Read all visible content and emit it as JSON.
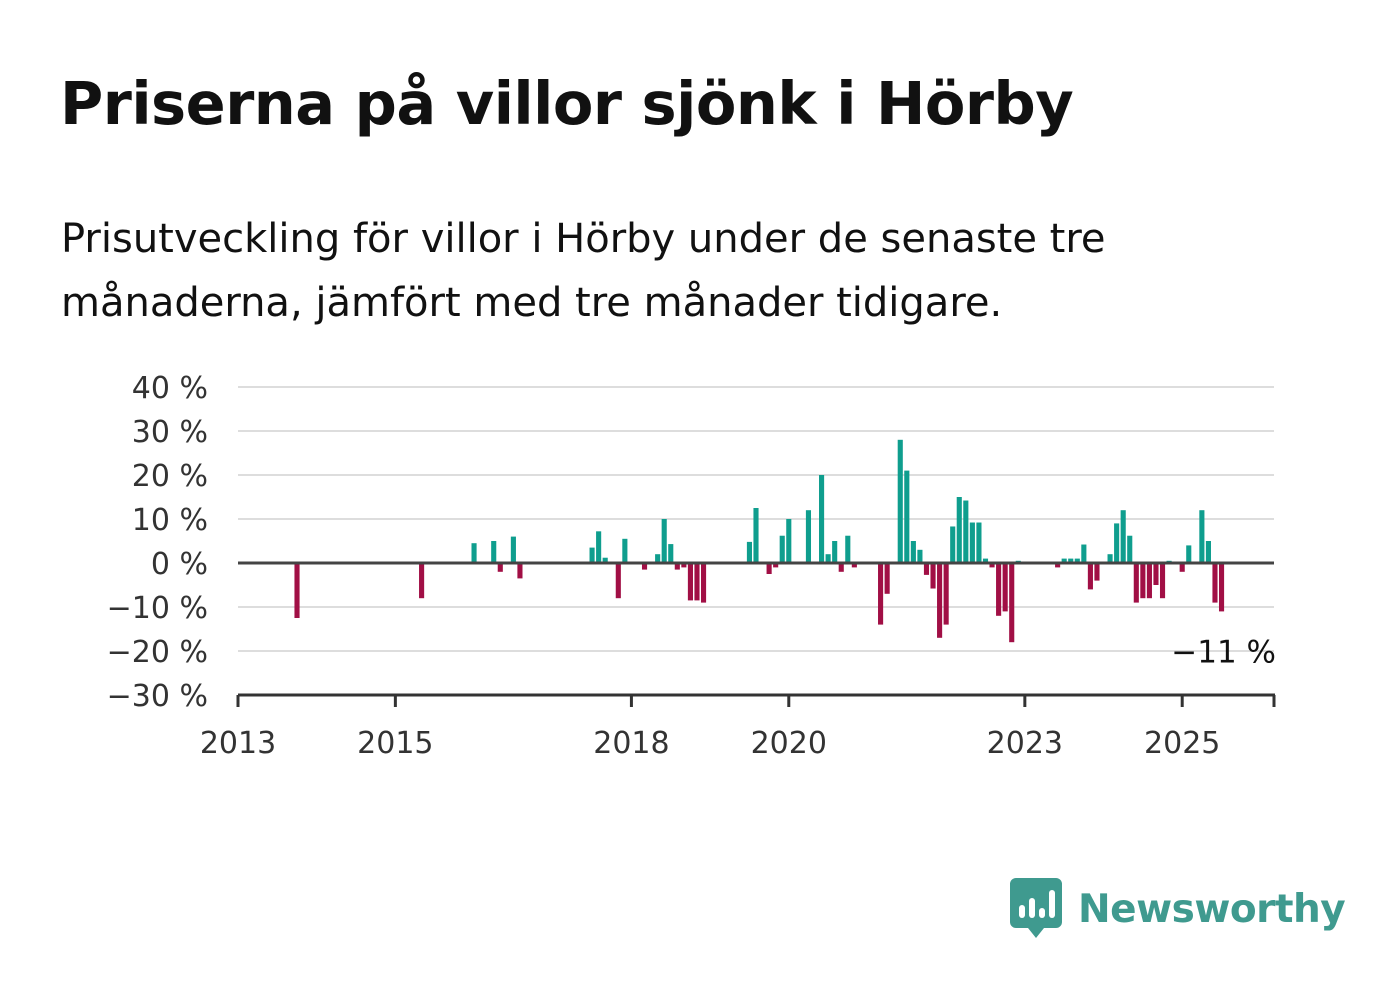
{
  "title": "Priserna på villor sjönk i Hörby",
  "subtitle": "Prisutveckling för villor i Hörby under de senaste tre månaderna, jämfört med tre månader tidigare.",
  "brand": {
    "name": "Newsworthy",
    "color": "#3f9a8f",
    "icon": "newsworthy-logo-icon"
  },
  "colors": {
    "positive": "#0f9e8e",
    "negative": "#a10f45",
    "grid": "#dddddd",
    "axis": "#444444"
  },
  "chart_data": {
    "type": "bar",
    "y_ticks": [
      "40 %",
      "30 %",
      "20 %",
      "10 %",
      "0 %",
      "−10 %",
      "−20 %",
      "−30 %"
    ],
    "y_tick_values": [
      40,
      30,
      20,
      10,
      0,
      -10,
      -20,
      -30
    ],
    "ylim": [
      -30,
      40
    ],
    "x_ticks": [
      "2013",
      "2015",
      "2018",
      "2020",
      "2023",
      "2025"
    ],
    "x_tick_values": [
      "2013-01",
      "2015-01",
      "2018-01",
      "2020-01",
      "2023-01",
      "2025-01"
    ],
    "xlim": [
      "2013-01",
      "2026-03"
    ],
    "grid": true,
    "end_label": "−11 %",
    "x": [
      "2013-10",
      "2015-05",
      "2016-01",
      "2016-04",
      "2016-05",
      "2016-07",
      "2016-08",
      "2017-07",
      "2017-08",
      "2017-09",
      "2017-11",
      "2017-12",
      "2018-03",
      "2018-05",
      "2018-06",
      "2018-07",
      "2018-08",
      "2018-09",
      "2018-10",
      "2018-11",
      "2018-12",
      "2019-07",
      "2019-08",
      "2019-10",
      "2019-11",
      "2019-12",
      "2020-01",
      "2020-04",
      "2020-06",
      "2020-07",
      "2020-08",
      "2020-09",
      "2020-10",
      "2020-11",
      "2021-03",
      "2021-04",
      "2021-06",
      "2021-07",
      "2021-08",
      "2021-09",
      "2021-10",
      "2021-11",
      "2021-12",
      "2022-01",
      "2022-02",
      "2022-03",
      "2022-04",
      "2022-05",
      "2022-06",
      "2022-07",
      "2022-08",
      "2022-09",
      "2022-10",
      "2022-11",
      "2022-12",
      "2023-06",
      "2023-07",
      "2023-08",
      "2023-09",
      "2023-10",
      "2023-11",
      "2023-12",
      "2024-02",
      "2024-03",
      "2024-04",
      "2024-05",
      "2024-06",
      "2024-07",
      "2024-08",
      "2024-09",
      "2024-10",
      "2024-11",
      "2025-01",
      "2025-02",
      "2025-04",
      "2025-05",
      "2025-06",
      "2025-07"
    ],
    "values": [
      -12.5,
      -8,
      4.5,
      5,
      -2,
      6,
      -3.5,
      3.5,
      7.2,
      1.2,
      -8,
      5.5,
      -1.5,
      2,
      10,
      4.3,
      -1.5,
      -1,
      -8.5,
      -8.5,
      -9,
      4.8,
      12.5,
      -2.5,
      -1,
      6.2,
      10,
      12,
      20,
      2,
      5,
      -2,
      6.2,
      -1,
      -14,
      -7,
      28,
      21,
      5,
      3,
      -2.7,
      -5.8,
      -17,
      -14,
      8.3,
      15,
      14.2,
      9.2,
      9.2,
      1,
      -1,
      -12,
      -11,
      -18,
      0.5,
      -1,
      1,
      1,
      1,
      4.2,
      -6,
      -4,
      2,
      9,
      12,
      6.2,
      -9,
      -8,
      -8,
      -5,
      -8,
      0.5,
      -2,
      4,
      12,
      5,
      -9,
      -11
    ]
  }
}
